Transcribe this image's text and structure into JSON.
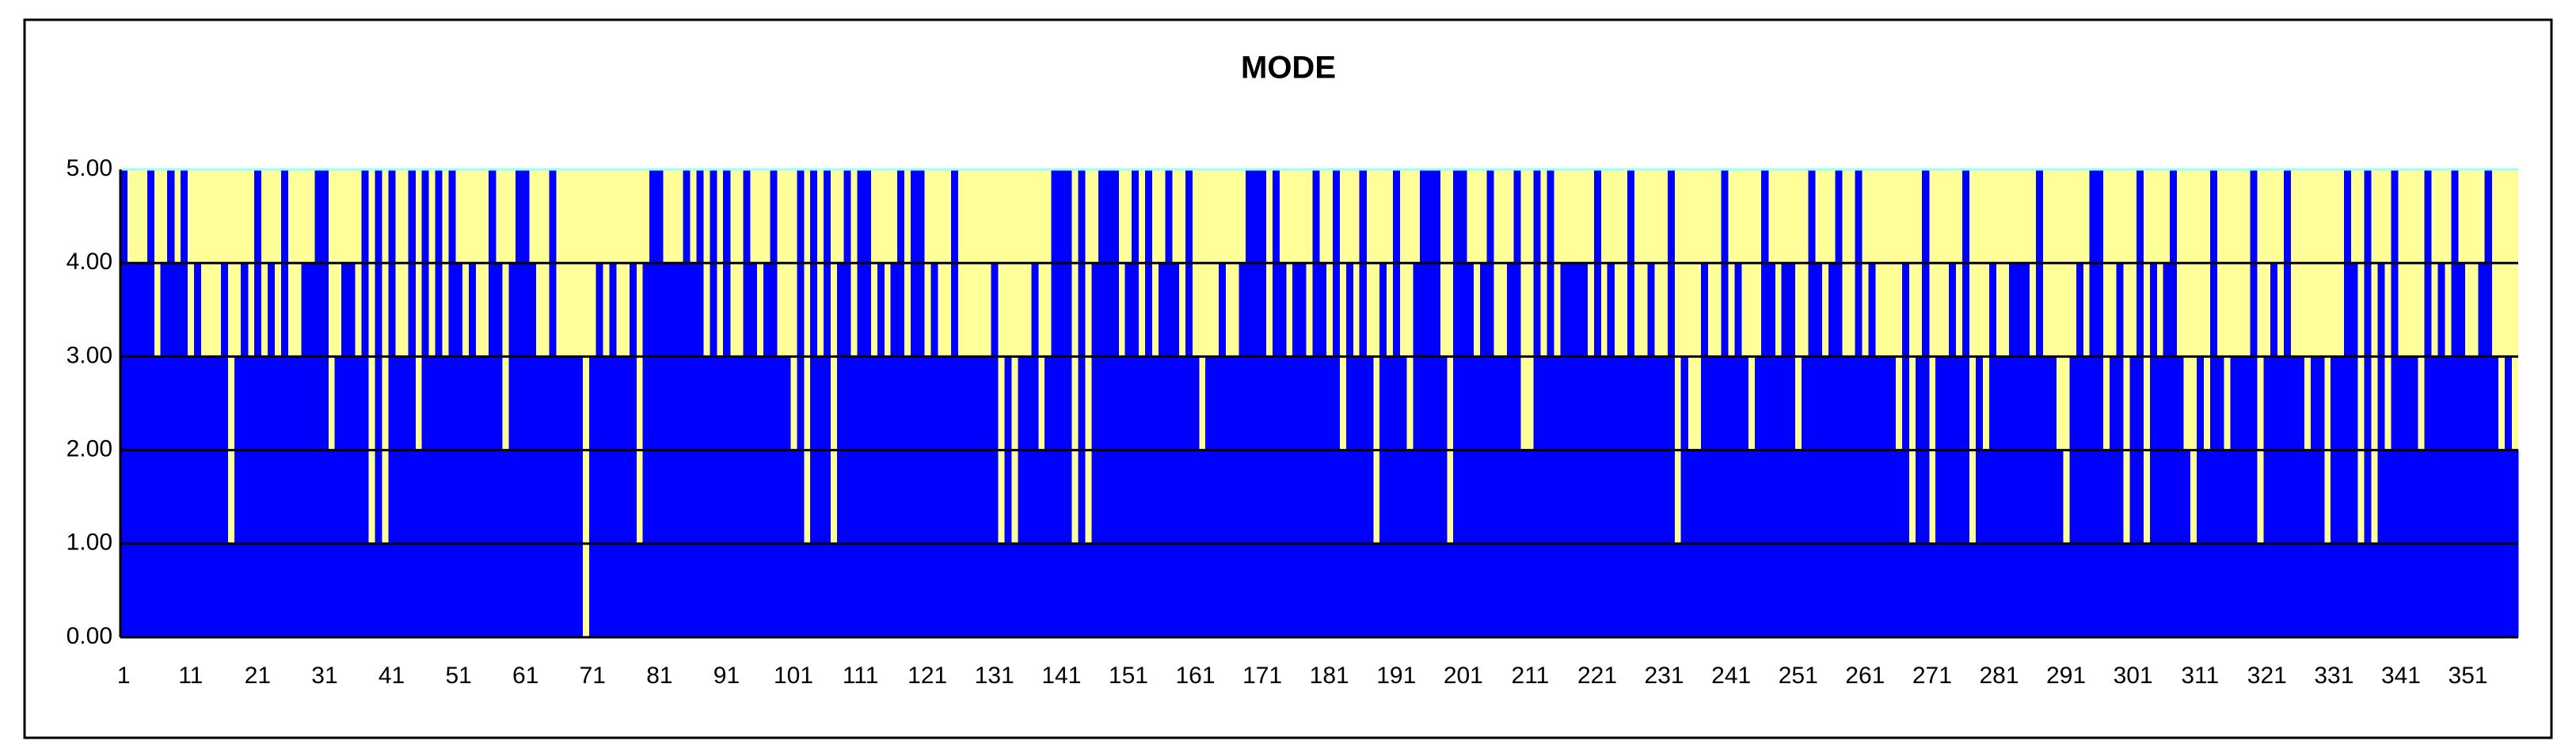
{
  "chart_data": {
    "type": "bar",
    "title": "MODE",
    "categories": [
      "1",
      null,
      null,
      null,
      null,
      null,
      null,
      null,
      null,
      null,
      "11",
      null,
      null,
      null,
      null,
      null,
      null,
      null,
      null,
      null,
      "21",
      null,
      null,
      null,
      null,
      null,
      null,
      null,
      null,
      null,
      "31",
      null,
      null,
      null,
      null,
      null,
      null,
      null,
      null,
      null,
      "41",
      null,
      null,
      null,
      null,
      null,
      null,
      null,
      null,
      null,
      "51",
      null,
      null,
      null,
      null,
      null,
      null,
      null,
      null,
      null,
      "61",
      null,
      null,
      null,
      null,
      null,
      null,
      null,
      null,
      null,
      "71",
      null,
      null,
      null,
      null,
      null,
      null,
      null,
      null,
      null,
      "81",
      null,
      null,
      null,
      null,
      null,
      null,
      null,
      null,
      null,
      "91",
      null,
      null,
      null,
      null,
      null,
      null,
      null,
      null,
      null,
      "101",
      null,
      null,
      null,
      null,
      null,
      null,
      null,
      null,
      null,
      "111",
      null,
      null,
      null,
      null,
      null,
      null,
      null,
      null,
      null,
      "121",
      null,
      null,
      null,
      null,
      null,
      null,
      null,
      null,
      null,
      "131",
      null,
      null,
      null,
      null,
      null,
      null,
      null,
      null,
      null,
      "141",
      null,
      null,
      null,
      null,
      null,
      null,
      null,
      null,
      null,
      "151",
      null,
      null,
      null,
      null,
      null,
      null,
      null,
      null,
      null,
      "161",
      null,
      null,
      null,
      null,
      null,
      null,
      null,
      null,
      null,
      "171",
      null,
      null,
      null,
      null,
      null,
      null,
      null,
      null,
      null,
      "181",
      null,
      null,
      null,
      null,
      null,
      null,
      null,
      null,
      null,
      "191",
      null,
      null,
      null,
      null,
      null,
      null,
      null,
      null,
      null,
      "201",
      null,
      null,
      null,
      null,
      null,
      null,
      null,
      null,
      null,
      "211",
      null,
      null,
      null,
      null,
      null,
      null,
      null,
      null,
      null,
      "221",
      null,
      null,
      null,
      null,
      null,
      null,
      null,
      null,
      null,
      "231",
      null,
      null,
      null,
      null,
      null,
      null,
      null,
      null,
      null,
      "241",
      null,
      null,
      null,
      null,
      null,
      null,
      null,
      null,
      null,
      "251",
      null,
      null,
      null,
      null,
      null,
      null,
      null,
      null,
      null,
      "261",
      null,
      null,
      null,
      null,
      null,
      null,
      null,
      null,
      null,
      "271",
      null,
      null,
      null,
      null,
      null,
      null,
      null,
      null,
      null,
      "281",
      null,
      null,
      null,
      null,
      null,
      null,
      null,
      null,
      null,
      "291",
      null,
      null,
      null,
      null,
      null,
      null,
      null,
      null,
      null,
      "301",
      null,
      null,
      null,
      null,
      null,
      null,
      null,
      null,
      null,
      "311",
      null,
      null,
      null,
      null,
      null,
      null,
      null,
      null,
      null,
      "321",
      null,
      null,
      null,
      null,
      null,
      null,
      null,
      null,
      null,
      "331",
      null,
      null,
      null,
      null,
      null,
      null,
      null,
      null,
      null,
      "341",
      null,
      null,
      null,
      null,
      null,
      null,
      null,
      null,
      null,
      "351",
      null,
      null,
      null,
      null,
      null,
      null,
      null
    ],
    "values": [
      5,
      4,
      4,
      4,
      5,
      3,
      4,
      5,
      4,
      5,
      3,
      4,
      3,
      3,
      3,
      4,
      1,
      3,
      4,
      3,
      5,
      3,
      4,
      3,
      5,
      3,
      3,
      4,
      4,
      5,
      5,
      2,
      3,
      4,
      4,
      3,
      5,
      1,
      5,
      1,
      5,
      3,
      3,
      5,
      2,
      5,
      3,
      5,
      3,
      5,
      4,
      3,
      4,
      3,
      3,
      5,
      4,
      2,
      4,
      5,
      5,
      4,
      3,
      3,
      5,
      3,
      3,
      3,
      3,
      0,
      3,
      4,
      3,
      4,
      3,
      3,
      4,
      1,
      4,
      5,
      5,
      4,
      4,
      4,
      5,
      4,
      5,
      3,
      5,
      3,
      5,
      3,
      3,
      5,
      4,
      3,
      4,
      5,
      3,
      3,
      2,
      5,
      1,
      5,
      3,
      5,
      1,
      4,
      5,
      3,
      5,
      5,
      3,
      4,
      3,
      4,
      5,
      3,
      5,
      5,
      3,
      4,
      3,
      3,
      5,
      3,
      3,
      3,
      3,
      3,
      4,
      1,
      3,
      1,
      3,
      3,
      4,
      2,
      3,
      5,
      5,
      5,
      1,
      5,
      1,
      4,
      5,
      5,
      5,
      3,
      4,
      5,
      3,
      5,
      3,
      4,
      5,
      4,
      3,
      5,
      3,
      2,
      3,
      3,
      4,
      3,
      3,
      4,
      5,
      5,
      5,
      3,
      5,
      4,
      3,
      4,
      4,
      3,
      5,
      4,
      3,
      5,
      2,
      4,
      3,
      5,
      3,
      1,
      4,
      3,
      5,
      3,
      2,
      4,
      5,
      5,
      5,
      3,
      1,
      5,
      5,
      4,
      3,
      4,
      5,
      3,
      3,
      4,
      5,
      2,
      2,
      5,
      3,
      5,
      3,
      4,
      4,
      4,
      4,
      3,
      5,
      3,
      4,
      3,
      3,
      5,
      3,
      3,
      4,
      3,
      3,
      5,
      1,
      3,
      2,
      2,
      4,
      3,
      3,
      5,
      3,
      4,
      3,
      2,
      3,
      5,
      4,
      3,
      4,
      4,
      2,
      3,
      5,
      4,
      3,
      4,
      5,
      3,
      3,
      5,
      3,
      4,
      3,
      3,
      3,
      2,
      4,
      1,
      3,
      5,
      1,
      3,
      3,
      4,
      3,
      5,
      1,
      3,
      2,
      4,
      3,
      3,
      4,
      4,
      4,
      3,
      5,
      3,
      3,
      2,
      1,
      3,
      4,
      3,
      5,
      5,
      2,
      3,
      4,
      1,
      3,
      5,
      1,
      4,
      3,
      4,
      5,
      3,
      2,
      1,
      3,
      2,
      5,
      3,
      2,
      3,
      3,
      3,
      5,
      1,
      3,
      4,
      3,
      5,
      3,
      3,
      2,
      3,
      3,
      1,
      3,
      3,
      5,
      4,
      1,
      5,
      1,
      4,
      2,
      5,
      3,
      3,
      3,
      2,
      5,
      3,
      4,
      3,
      5,
      4,
      3,
      3,
      4,
      5,
      3,
      2,
      3,
      2
    ],
    "color": "#0000ff",
    "background": "#ffff99",
    "ylim": [
      0,
      5
    ],
    "yticks": [
      {
        "value": 0,
        "label": "0.00"
      },
      {
        "value": 1,
        "label": "1.00"
      },
      {
        "value": 2,
        "label": "2.00"
      },
      {
        "value": 3,
        "label": "3.00"
      },
      {
        "value": 4,
        "label": "4.00"
      },
      {
        "value": 5,
        "label": "5.00"
      }
    ],
    "grid": true
  }
}
